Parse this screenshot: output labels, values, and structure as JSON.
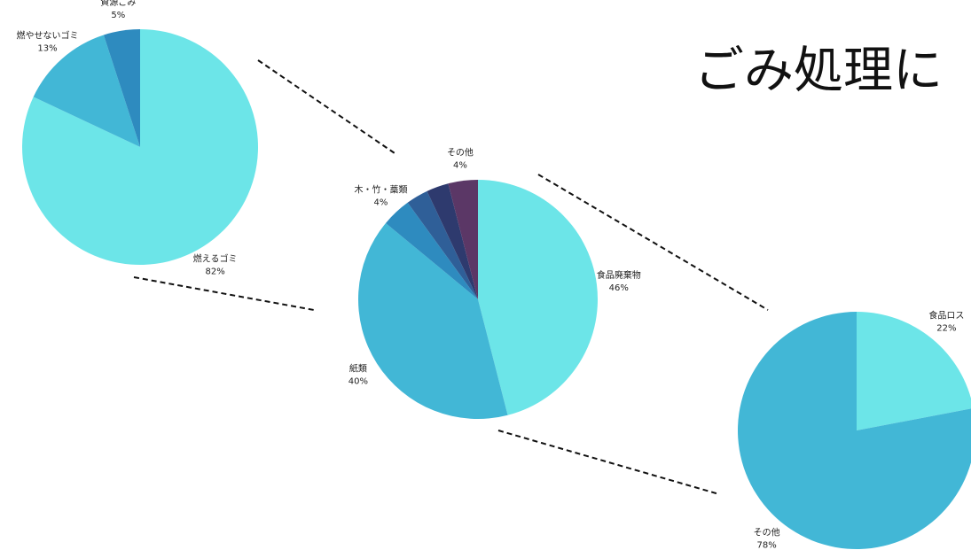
{
  "title": "ごみ処理に",
  "chart_data": [
    {
      "type": "pie",
      "categories": [
        "燃えるゴミ",
        "燃やせないゴミ",
        "資源ごみ"
      ],
      "values": [
        82,
        13,
        5
      ],
      "value_labels": [
        "82%",
        "13%",
        "5%"
      ],
      "colors": [
        "#6ce5e8",
        "#42b7d6",
        "#2e8bbf"
      ]
    },
    {
      "type": "pie",
      "categories": [
        "食品廃棄物",
        "紙類",
        "木・竹・藁類",
        null,
        null,
        "その他"
      ],
      "values": [
        46,
        40,
        4,
        3,
        3,
        4
      ],
      "value_labels": [
        "46%",
        "40%",
        "4%",
        null,
        null,
        "4%"
      ],
      "colors": [
        "#6ce5e8",
        "#42b7d6",
        "#2e8bbf",
        "#2f5f98",
        "#2e3a6e",
        "#5b3766"
      ]
    },
    {
      "type": "pie",
      "categories": [
        "食品ロス",
        "その他"
      ],
      "values": [
        22,
        78
      ],
      "value_labels": [
        "22%",
        "78%"
      ],
      "colors": [
        "#6ce5e8",
        "#42b7d6"
      ]
    }
  ]
}
